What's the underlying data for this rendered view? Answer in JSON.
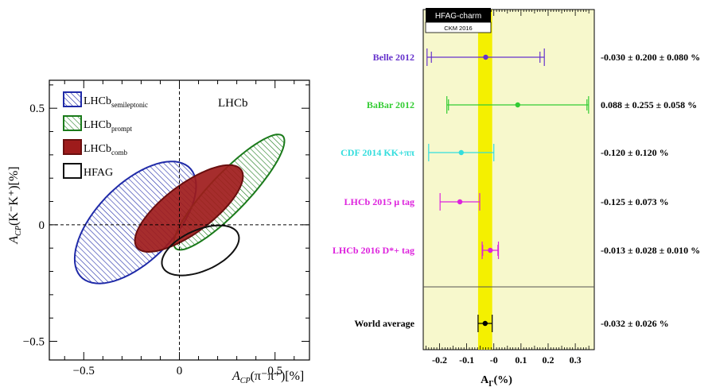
{
  "chart_data": [
    {
      "type": "ellipse-contour",
      "annotation": "LHCb",
      "xlabel_main": "A",
      "xlabel_sub": "CP",
      "xlabel_arg": "(π⁻π⁺)[%]",
      "ylabel_main": "A",
      "ylabel_sub": "CP",
      "ylabel_arg": "(K⁻K⁺)[%]",
      "xlim": [
        -0.68,
        0.68
      ],
      "ylim": [
        -0.58,
        0.62
      ],
      "xticks": [
        -0.5,
        0,
        0.5
      ],
      "xtick_labels": [
        "−0.5",
        "0",
        "0.5"
      ],
      "yticks": [
        -0.5,
        0,
        0.5
      ],
      "ytick_labels": [
        "−0.5",
        "0",
        "0.5"
      ],
      "legend_placement": "top-left",
      "series": [
        {
          "name": "LHCb",
          "sub": "semileptonic",
          "style": "hatched",
          "color": "#1f2aa8",
          "center": [
            -0.23,
            0.01
          ],
          "semi_axes": [
            0.37,
            0.18
          ],
          "angle_deg": 36
        },
        {
          "name": "LHCb",
          "sub": "prompt",
          "style": "hatched",
          "color": "#1a7a1a",
          "center": [
            0.26,
            0.14
          ],
          "semi_axes": [
            0.37,
            0.09
          ],
          "angle_deg": 40
        },
        {
          "name": "LHCb",
          "sub": "comb",
          "style": "filled",
          "color": "#9e1b1b",
          "center": [
            0.05,
            0.07
          ],
          "semi_axes": [
            0.32,
            0.11
          ],
          "angle_deg": 30
        },
        {
          "name": "HFAG",
          "sub": "",
          "style": "outline",
          "color": "#111111",
          "center": [
            0.11,
            -0.11
          ],
          "semi_axes": [
            0.21,
            0.09
          ],
          "angle_deg": 18
        }
      ]
    },
    {
      "type": "forest",
      "badge_title": "HFAG-charm",
      "badge_subtitle": "CKM 2016",
      "xlabel": "A",
      "xlabel_sub": "Γ",
      "xlabel_unit": "(%)",
      "xlim": [
        -0.26,
        0.37
      ],
      "xticks": [
        -0.2,
        -0.1,
        0,
        0.1,
        0.2,
        0.3
      ],
      "xtick_labels": [
        "-0.2",
        "-0.1",
        "-0",
        "0.1",
        "0.2",
        "0.3"
      ],
      "band": {
        "center": -0.032,
        "half_width": 0.026,
        "color": "#f4f000"
      },
      "measurements": [
        {
          "label": "Belle 2012",
          "value": -0.03,
          "err_lo": 0.216,
          "err_hi": 0.216,
          "text": "-0.030 ± 0.200 ± 0.080 %",
          "color": "#6633cc",
          "inner_lo": 0.2,
          "inner_hi": 0.2
        },
        {
          "label": "BaBar 2012",
          "value": 0.088,
          "err_lo": 0.261,
          "err_hi": 0.261,
          "text": "0.088 ± 0.255 ± 0.058 %",
          "color": "#33cc33",
          "inner_lo": 0.255,
          "inner_hi": 0.255
        },
        {
          "label": "CDF 2014 KK+ππ",
          "value": -0.12,
          "err_lo": 0.12,
          "err_hi": 0.12,
          "text": "-0.120 ± 0.120 %",
          "color": "#33dddd"
        },
        {
          "label": "LHCb 2015 μ tag",
          "value": -0.125,
          "err_lo": 0.073,
          "err_hi": 0.073,
          "text": "-0.125 ± 0.073 %",
          "color": "#dd22dd"
        },
        {
          "label": "LHCb 2016 D*+ tag",
          "value": -0.013,
          "err_lo": 0.03,
          "err_hi": 0.03,
          "text": "-0.013 ± 0.028 ± 0.010 %",
          "color": "#dd22dd",
          "inner_lo": 0.028,
          "inner_hi": 0.028
        }
      ],
      "average": {
        "label": "World average",
        "value": -0.032,
        "err_lo": 0.026,
        "err_hi": 0.026,
        "text": "-0.032 ± 0.026 %",
        "color": "#000000"
      }
    }
  ]
}
